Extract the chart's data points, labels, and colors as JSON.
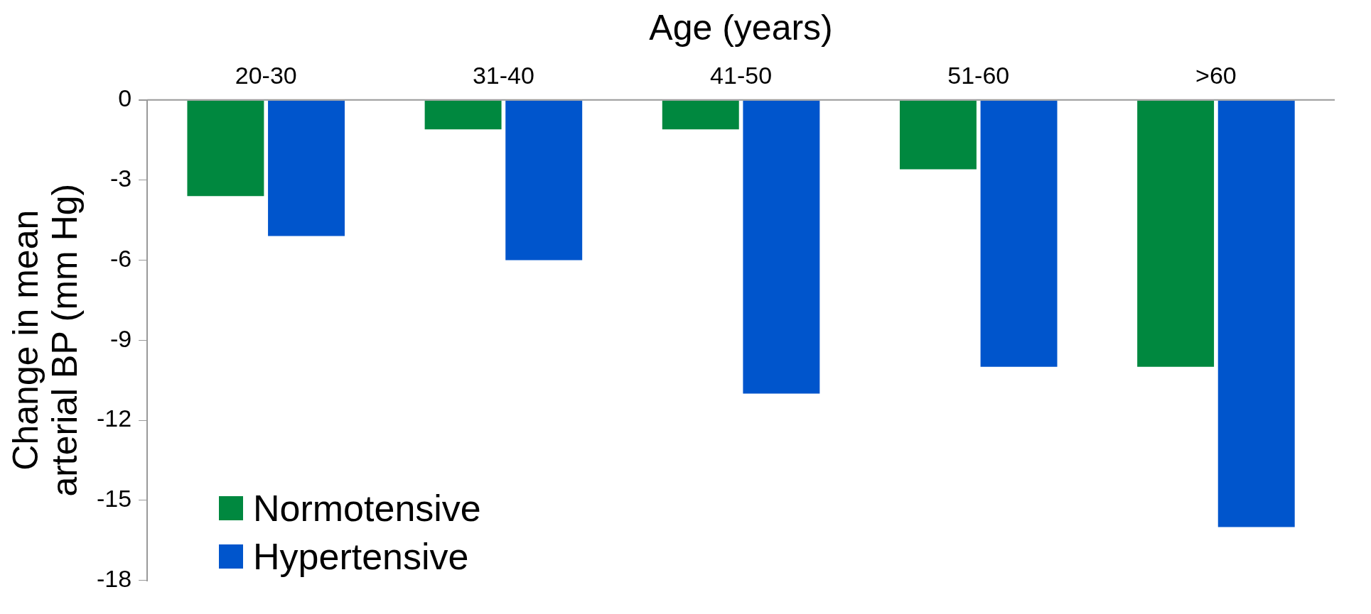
{
  "chart_data": {
    "type": "bar",
    "xlabel": "Age (years)",
    "ylabel": "Change in mean\narterial BP (mm Hg)",
    "categories": [
      "20-30",
      "31-40",
      "41-50",
      "51-60",
      ">60"
    ],
    "series": [
      {
        "name": "Normotensive",
        "color": "#00883f",
        "values": [
          -3.6,
          -1.1,
          -1.1,
          -2.6,
          -10.0
        ]
      },
      {
        "name": "Hypertensive",
        "color": "#0055cc",
        "values": [
          -5.1,
          -6.0,
          -11.0,
          -10.0,
          -16.0
        ]
      }
    ],
    "ylim": [
      -18,
      0
    ],
    "yticks": [
      0,
      -3,
      -6,
      -9,
      -12,
      -15,
      -18
    ],
    "grid": false,
    "legend": "bottom left"
  }
}
